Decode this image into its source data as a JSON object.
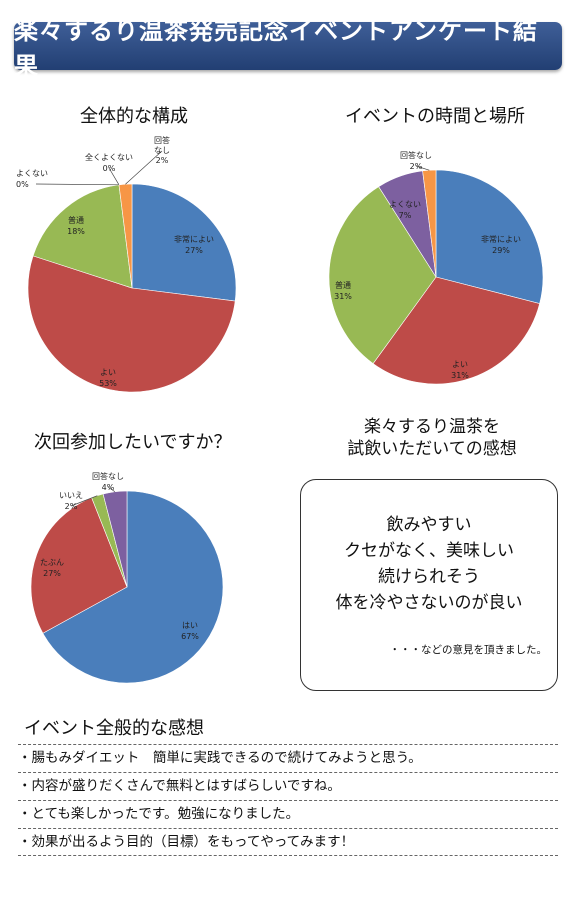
{
  "banner": {
    "title": "楽々するり温茶発売記念イベントアンケート結果"
  },
  "chart_data": [
    {
      "type": "pie",
      "title": "全体的な構成",
      "slices": [
        {
          "label": "非常によい",
          "value": 27,
          "color": "#4a7ebb"
        },
        {
          "label": "よい",
          "value": 53,
          "color": "#be4b48"
        },
        {
          "label": "普通",
          "value": 18,
          "color": "#98b954"
        },
        {
          "label": "よくない",
          "value": 0,
          "color": "#7d60a0"
        },
        {
          "label": "全くよくない",
          "value": 0,
          "color": "#46aac5"
        },
        {
          "label": "回答なし",
          "value": 2,
          "color": "#f79646"
        }
      ]
    },
    {
      "type": "pie",
      "title": "イベントの時間と場所",
      "slices": [
        {
          "label": "非常によい",
          "value": 29,
          "color": "#4a7ebb"
        },
        {
          "label": "よい",
          "value": 31,
          "color": "#be4b48"
        },
        {
          "label": "普通",
          "value": 31,
          "color": "#98b954"
        },
        {
          "label": "よくない",
          "value": 7,
          "color": "#7d60a0"
        },
        {
          "label": "回答なし",
          "value": 2,
          "color": "#f79646"
        }
      ]
    },
    {
      "type": "pie",
      "title": "次回参加したいですか？",
      "slices": [
        {
          "label": "はい",
          "value": 67,
          "color": "#4a7ebb"
        },
        {
          "label": "たぶん",
          "value": 27,
          "color": "#be4b48"
        },
        {
          "label": "いいえ",
          "value": 2,
          "color": "#98b954"
        },
        {
          "label": "回答なし",
          "value": 4,
          "color": "#7d60a0"
        }
      ]
    }
  ],
  "feedback": {
    "title_line1": "楽々するり温茶を",
    "title_line2": "試飲いただいての感想",
    "lines": [
      "飲みやすい",
      "クセがなく、美味しい",
      "続けられそう",
      "体を冷やさないのが良い"
    ],
    "note": "・・・などの意見を頂きました。"
  },
  "general": {
    "title": "イベント全般的な感想",
    "comments": [
      "・腸もみダイエット　簡単に実践できるので続けてみようと思う。",
      "・内容が盛りだくさんで無料とはすばらしいですね。",
      "・とても楽しかったです。勉強になりました。",
      "・効果が出るよう目的（目標）をもってやってみます！"
    ]
  }
}
